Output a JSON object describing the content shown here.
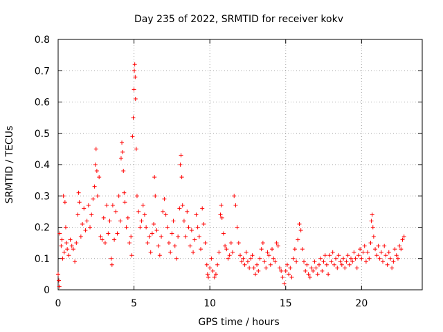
{
  "chart_data": {
    "type": "scatter",
    "title": "Day 235 of 2022, SRMTID for receiver kokv",
    "xlabel": "GPS time / hours",
    "ylabel": "SRMTID / TECUs",
    "xlim": [
      0,
      24
    ],
    "ylim": [
      0,
      0.8
    ],
    "x_ticks": [
      0,
      5,
      10,
      15,
      20
    ],
    "x_tick_labels": [
      "0",
      "5",
      "10",
      "15",
      "20"
    ],
    "y_ticks": [
      0,
      0.1,
      0.2,
      0.3,
      0.4,
      0.5,
      0.6,
      0.7,
      0.8
    ],
    "y_tick_labels": [
      "0",
      "0.1",
      "0.2",
      "0.3",
      "0.4",
      "0.5",
      "0.6",
      "0.7",
      "0.8"
    ],
    "grid": true,
    "marker": "plus",
    "series_color": "#ff0000",
    "series": [
      {
        "name": "SRMTID",
        "points": [
          [
            0.0,
            0.05
          ],
          [
            0.05,
            0.03
          ],
          [
            0.08,
            0.01
          ],
          [
            0.1,
            0.18
          ],
          [
            0.2,
            0.14
          ],
          [
            0.25,
            0.16
          ],
          [
            0.3,
            0.1
          ],
          [
            0.35,
            0.3
          ],
          [
            0.4,
            0.12
          ],
          [
            0.45,
            0.28
          ],
          [
            0.5,
            0.2
          ],
          [
            0.55,
            0.15
          ],
          [
            0.6,
            0.13
          ],
          [
            0.7,
            0.11
          ],
          [
            0.8,
            0.16
          ],
          [
            0.9,
            0.14
          ],
          [
            1.0,
            0.13
          ],
          [
            1.1,
            0.09
          ],
          [
            1.2,
            0.15
          ],
          [
            1.3,
            0.24
          ],
          [
            1.35,
            0.31
          ],
          [
            1.4,
            0.28
          ],
          [
            1.5,
            0.17
          ],
          [
            1.6,
            0.21
          ],
          [
            1.7,
            0.26
          ],
          [
            1.8,
            0.19
          ],
          [
            1.9,
            0.22
          ],
          [
            2.0,
            0.27
          ],
          [
            2.1,
            0.2
          ],
          [
            2.2,
            0.24
          ],
          [
            2.3,
            0.29
          ],
          [
            2.4,
            0.33
          ],
          [
            2.45,
            0.4
          ],
          [
            2.5,
            0.45
          ],
          [
            2.55,
            0.38
          ],
          [
            2.6,
            0.3
          ],
          [
            2.7,
            0.36
          ],
          [
            2.8,
            0.17
          ],
          [
            2.9,
            0.16
          ],
          [
            3.0,
            0.23
          ],
          [
            3.1,
            0.15
          ],
          [
            3.2,
            0.27
          ],
          [
            3.3,
            0.18
          ],
          [
            3.4,
            0.22
          ],
          [
            3.5,
            0.1
          ],
          [
            3.55,
            0.08
          ],
          [
            3.6,
            0.27
          ],
          [
            3.7,
            0.16
          ],
          [
            3.8,
            0.25
          ],
          [
            3.9,
            0.18
          ],
          [
            4.0,
            0.3
          ],
          [
            4.1,
            0.22
          ],
          [
            4.15,
            0.42
          ],
          [
            4.2,
            0.47
          ],
          [
            4.25,
            0.44
          ],
          [
            4.3,
            0.38
          ],
          [
            4.35,
            0.31
          ],
          [
            4.4,
            0.28
          ],
          [
            4.5,
            0.2
          ],
          [
            4.6,
            0.23
          ],
          [
            4.7,
            0.15
          ],
          [
            4.8,
            0.17
          ],
          [
            4.85,
            0.11
          ],
          [
            4.9,
            0.49
          ],
          [
            4.95,
            0.55
          ],
          [
            5.0,
            0.64
          ],
          [
            5.02,
            0.7
          ],
          [
            5.05,
            0.72
          ],
          [
            5.08,
            0.68
          ],
          [
            5.1,
            0.61
          ],
          [
            5.15,
            0.45
          ],
          [
            5.2,
            0.3
          ],
          [
            5.3,
            0.25
          ],
          [
            5.4,
            0.2
          ],
          [
            5.5,
            0.22
          ],
          [
            5.6,
            0.27
          ],
          [
            5.7,
            0.24
          ],
          [
            5.8,
            0.2
          ],
          [
            5.9,
            0.15
          ],
          [
            6.0,
            0.17
          ],
          [
            6.1,
            0.12
          ],
          [
            6.2,
            0.18
          ],
          [
            6.3,
            0.21
          ],
          [
            6.35,
            0.36
          ],
          [
            6.4,
            0.3
          ],
          [
            6.5,
            0.19
          ],
          [
            6.6,
            0.14
          ],
          [
            6.7,
            0.11
          ],
          [
            6.8,
            0.17
          ],
          [
            6.9,
            0.25
          ],
          [
            7.0,
            0.29
          ],
          [
            7.1,
            0.24
          ],
          [
            7.2,
            0.2
          ],
          [
            7.3,
            0.15
          ],
          [
            7.4,
            0.12
          ],
          [
            7.5,
            0.18
          ],
          [
            7.6,
            0.22
          ],
          [
            7.7,
            0.14
          ],
          [
            7.8,
            0.1
          ],
          [
            7.9,
            0.17
          ],
          [
            8.0,
            0.26
          ],
          [
            8.05,
            0.4
          ],
          [
            8.1,
            0.43
          ],
          [
            8.15,
            0.36
          ],
          [
            8.2,
            0.27
          ],
          [
            8.3,
            0.22
          ],
          [
            8.4,
            0.17
          ],
          [
            8.5,
            0.25
          ],
          [
            8.6,
            0.2
          ],
          [
            8.7,
            0.14
          ],
          [
            8.8,
            0.19
          ],
          [
            8.9,
            0.12
          ],
          [
            9.0,
            0.16
          ],
          [
            9.1,
            0.24
          ],
          [
            9.2,
            0.2
          ],
          [
            9.3,
            0.17
          ],
          [
            9.4,
            0.13
          ],
          [
            9.5,
            0.26
          ],
          [
            9.6,
            0.21
          ],
          [
            9.7,
            0.15
          ],
          [
            9.8,
            0.08
          ],
          [
            9.85,
            0.05
          ],
          [
            9.9,
            0.04
          ],
          [
            10.0,
            0.07
          ],
          [
            10.1,
            0.1
          ],
          [
            10.2,
            0.06
          ],
          [
            10.3,
            0.04
          ],
          [
            10.4,
            0.05
          ],
          [
            10.5,
            0.08
          ],
          [
            10.6,
            0.12
          ],
          [
            10.7,
            0.24
          ],
          [
            10.75,
            0.27
          ],
          [
            10.8,
            0.23
          ],
          [
            10.9,
            0.18
          ],
          [
            11.0,
            0.14
          ],
          [
            11.1,
            0.13
          ],
          [
            11.2,
            0.1
          ],
          [
            11.3,
            0.11
          ],
          [
            11.4,
            0.15
          ],
          [
            11.5,
            0.12
          ],
          [
            11.6,
            0.3
          ],
          [
            11.7,
            0.27
          ],
          [
            11.8,
            0.2
          ],
          [
            11.9,
            0.15
          ],
          [
            12.0,
            0.11
          ],
          [
            12.1,
            0.09
          ],
          [
            12.2,
            0.1
          ],
          [
            12.3,
            0.08
          ],
          [
            12.4,
            0.12
          ],
          [
            12.5,
            0.09
          ],
          [
            12.6,
            0.07
          ],
          [
            12.7,
            0.1
          ],
          [
            12.8,
            0.11
          ],
          [
            12.9,
            0.07
          ],
          [
            13.0,
            0.05
          ],
          [
            13.1,
            0.08
          ],
          [
            13.2,
            0.06
          ],
          [
            13.3,
            0.1
          ],
          [
            13.4,
            0.13
          ],
          [
            13.5,
            0.15
          ],
          [
            13.6,
            0.09
          ],
          [
            13.7,
            0.07
          ],
          [
            13.8,
            0.12
          ],
          [
            13.9,
            0.11
          ],
          [
            14.0,
            0.08
          ],
          [
            14.1,
            0.13
          ],
          [
            14.2,
            0.1
          ],
          [
            14.3,
            0.09
          ],
          [
            14.4,
            0.15
          ],
          [
            14.5,
            0.14
          ],
          [
            14.6,
            0.07
          ],
          [
            14.7,
            0.06
          ],
          [
            14.8,
            0.04
          ],
          [
            14.9,
            0.02
          ],
          [
            15.0,
            0.06
          ],
          [
            15.1,
            0.08
          ],
          [
            15.2,
            0.05
          ],
          [
            15.3,
            0.07
          ],
          [
            15.4,
            0.04
          ],
          [
            15.5,
            0.1
          ],
          [
            15.6,
            0.13
          ],
          [
            15.7,
            0.09
          ],
          [
            15.8,
            0.16
          ],
          [
            15.9,
            0.21
          ],
          [
            16.0,
            0.19
          ],
          [
            16.1,
            0.13
          ],
          [
            16.2,
            0.09
          ],
          [
            16.3,
            0.06
          ],
          [
            16.4,
            0.08
          ],
          [
            16.5,
            0.05
          ],
          [
            16.6,
            0.04
          ],
          [
            16.7,
            0.07
          ],
          [
            16.8,
            0.06
          ],
          [
            16.9,
            0.09
          ],
          [
            17.0,
            0.07
          ],
          [
            17.1,
            0.05
          ],
          [
            17.2,
            0.08
          ],
          [
            17.3,
            0.1
          ],
          [
            17.4,
            0.06
          ],
          [
            17.5,
            0.09
          ],
          [
            17.6,
            0.11
          ],
          [
            17.7,
            0.08
          ],
          [
            17.8,
            0.05
          ],
          [
            17.9,
            0.11
          ],
          [
            18.0,
            0.09
          ],
          [
            18.1,
            0.12
          ],
          [
            18.2,
            0.08
          ],
          [
            18.3,
            0.1
          ],
          [
            18.4,
            0.07
          ],
          [
            18.5,
            0.11
          ],
          [
            18.6,
            0.09
          ],
          [
            18.7,
            0.08
          ],
          [
            18.8,
            0.1
          ],
          [
            18.9,
            0.07
          ],
          [
            19.0,
            0.09
          ],
          [
            19.1,
            0.11
          ],
          [
            19.2,
            0.08
          ],
          [
            19.3,
            0.1
          ],
          [
            19.4,
            0.09
          ],
          [
            19.5,
            0.12
          ],
          [
            19.6,
            0.1
          ],
          [
            19.7,
            0.07
          ],
          [
            19.8,
            0.11
          ],
          [
            19.9,
            0.13
          ],
          [
            20.0,
            0.1
          ],
          [
            20.1,
            0.12
          ],
          [
            20.2,
            0.14
          ],
          [
            20.3,
            0.09
          ],
          [
            20.4,
            0.12
          ],
          [
            20.5,
            0.1
          ],
          [
            20.6,
            0.15
          ],
          [
            20.65,
            0.22
          ],
          [
            20.7,
            0.24
          ],
          [
            20.75,
            0.2
          ],
          [
            20.8,
            0.17
          ],
          [
            20.9,
            0.13
          ],
          [
            21.0,
            0.11
          ],
          [
            21.1,
            0.14
          ],
          [
            21.2,
            0.1
          ],
          [
            21.3,
            0.12
          ],
          [
            21.4,
            0.09
          ],
          [
            21.5,
            0.14
          ],
          [
            21.6,
            0.11
          ],
          [
            21.7,
            0.08
          ],
          [
            21.8,
            0.12
          ],
          [
            21.9,
            0.1
          ],
          [
            22.0,
            0.07
          ],
          [
            22.1,
            0.09
          ],
          [
            22.2,
            0.13
          ],
          [
            22.3,
            0.11
          ],
          [
            22.4,
            0.1
          ],
          [
            22.5,
            0.14
          ],
          [
            22.6,
            0.13
          ],
          [
            22.7,
            0.16
          ],
          [
            22.8,
            0.17
          ]
        ]
      }
    ]
  }
}
